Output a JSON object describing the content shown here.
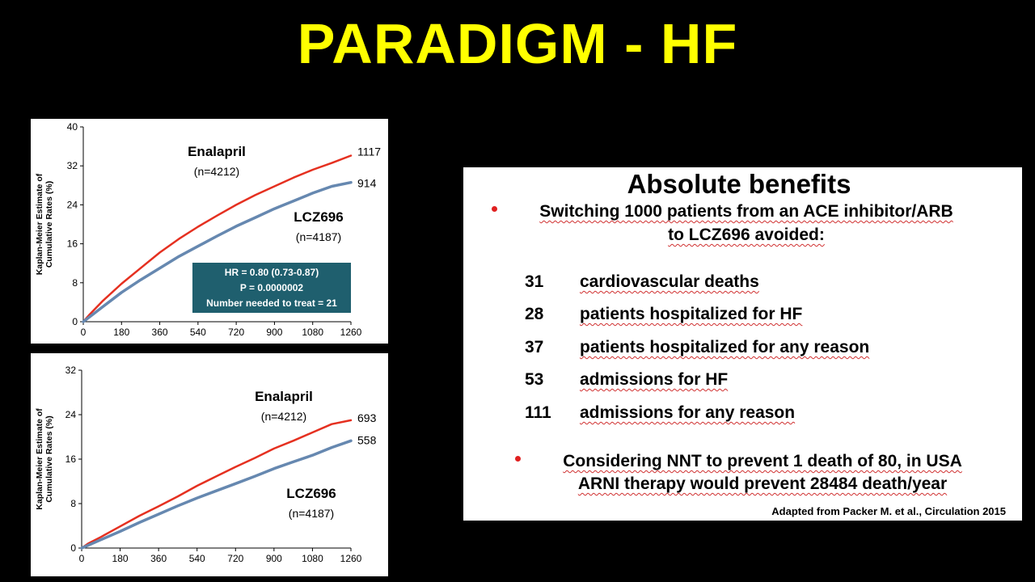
{
  "slide": {
    "title": "PARADIGM - HF"
  },
  "panel": {
    "title": "Absolute benefits",
    "bullet1_line1": "Switching 1000 patients from an ACE inhibitor/ARB",
    "bullet1_line2": "to LCZ696 avoided:",
    "items": [
      {
        "num": "31",
        "text": "cardiovascular deaths"
      },
      {
        "num": "28",
        "text": "patients hospitalized for HF"
      },
      {
        "num": "37",
        "text": "patients hospitalized for any reason"
      },
      {
        "num": "53",
        "text": "admissions for HF"
      },
      {
        "num": "111",
        "text": "admissions for any reason"
      }
    ],
    "bullet2_line1": "Considering NNT to prevent 1 death of 80, in USA",
    "bullet2_line2": "ARNI therapy would prevent 28484 death/year",
    "source": "Adapted from Packer M. et al., Circulation 2015",
    "colors": {
      "bullet": "#e02020"
    }
  },
  "chart_data": [
    {
      "type": "line",
      "ylabel": "Kaplan-Meier Estimate of Cumulative Rates (%)",
      "xticks": [
        "0",
        "180",
        "360",
        "540",
        "720",
        "900",
        "1080",
        "1260"
      ],
      "yticks": [
        "0",
        "8",
        "16",
        "24",
        "32",
        "40"
      ],
      "xlim": [
        0,
        1260
      ],
      "ylim": [
        0,
        40
      ],
      "series": [
        {
          "name": "Enalapril",
          "subtitle": "(n=4212)",
          "end_label": "1117",
          "color": "#e53020",
          "x": [
            0,
            30,
            90,
            180,
            270,
            360,
            450,
            540,
            630,
            720,
            810,
            900,
            990,
            1080,
            1170,
            1260
          ],
          "y": [
            0,
            1.5,
            4.2,
            7.8,
            11.0,
            14.2,
            17.0,
            19.5,
            21.8,
            24.0,
            26.0,
            27.8,
            29.6,
            31.2,
            32.6,
            34.1
          ]
        },
        {
          "name": "LCZ696",
          "subtitle": "(n=4187)",
          "end_label": "914",
          "color": "#6688b0",
          "x": [
            0,
            30,
            90,
            180,
            270,
            360,
            450,
            540,
            630,
            720,
            810,
            900,
            990,
            1080,
            1170,
            1260
          ],
          "y": [
            0,
            1.0,
            3.0,
            6.0,
            8.6,
            11.0,
            13.4,
            15.5,
            17.6,
            19.6,
            21.4,
            23.2,
            24.8,
            26.4,
            27.8,
            28.6
          ]
        }
      ],
      "annotation": {
        "lines": [
          "HR = 0.80 (0.73-0.87)",
          "P = 0.0000002",
          "Number needed to treat = 21"
        ],
        "color": "#1f5f6e"
      }
    },
    {
      "type": "line",
      "ylabel": "Kaplan-Meier Estimate of Cumulative Rates (%)",
      "xticks": [
        "0",
        "180",
        "360",
        "540",
        "720",
        "900",
        "1080",
        "1260"
      ],
      "yticks": [
        "0",
        "8",
        "16",
        "24",
        "32"
      ],
      "xlim": [
        0,
        1260
      ],
      "ylim": [
        0,
        32
      ],
      "series": [
        {
          "name": "Enalapril",
          "subtitle": "(n=4212)",
          "end_label": "693",
          "color": "#e53020",
          "x": [
            0,
            30,
            90,
            180,
            270,
            360,
            450,
            540,
            630,
            720,
            810,
            900,
            990,
            1080,
            1170,
            1260
          ],
          "y": [
            0,
            0.8,
            2.0,
            3.9,
            5.8,
            7.5,
            9.3,
            11.2,
            12.9,
            14.6,
            16.2,
            17.9,
            19.3,
            20.8,
            22.3,
            23.0
          ]
        },
        {
          "name": "LCZ696",
          "subtitle": "(n=4187)",
          "end_label": "558",
          "color": "#6688b0",
          "x": [
            0,
            30,
            90,
            180,
            270,
            360,
            450,
            540,
            630,
            720,
            810,
            900,
            990,
            1080,
            1170,
            1260
          ],
          "y": [
            0,
            0.5,
            1.5,
            3.0,
            4.6,
            6.1,
            7.6,
            9.0,
            10.3,
            11.6,
            12.9,
            14.3,
            15.5,
            16.7,
            18.1,
            19.3
          ]
        }
      ]
    }
  ]
}
